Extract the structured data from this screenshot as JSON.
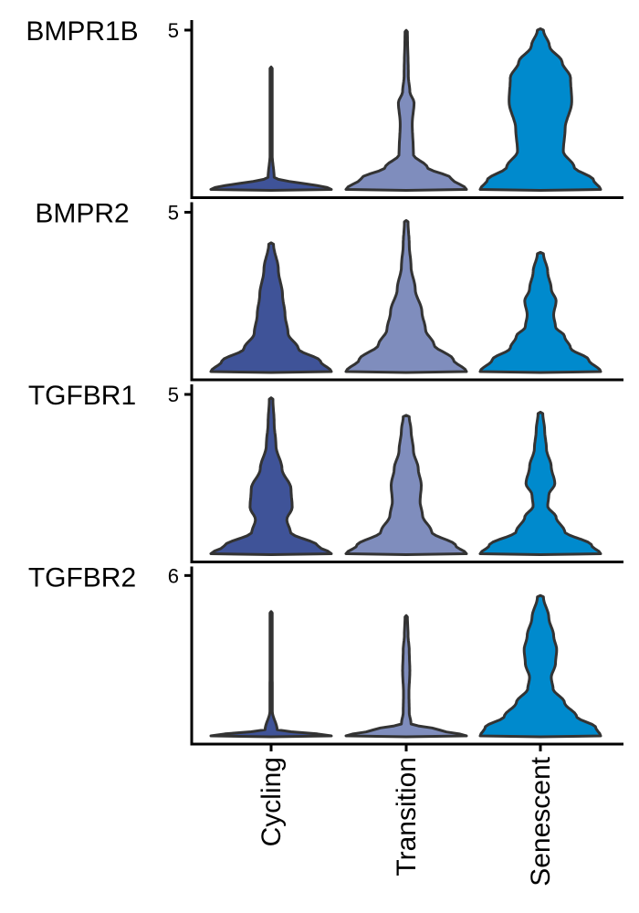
{
  "chart_data": {
    "type": "violin",
    "categories": [
      "Cycling",
      "Transition",
      "Senescent"
    ],
    "colors": {
      "Cycling": "#3F5398",
      "Transition": "#7F8DBD",
      "Senescent": "#008ACD"
    },
    "legend": "none",
    "grid": false,
    "panels": [
      {
        "gene": "BMPR1B",
        "ylim": [
          0,
          5.2
        ],
        "yticks": [
          5
        ],
        "violins": [
          {
            "category": "Cycling",
            "max": 3.8,
            "profile": [
              [
                0,
                1.0
              ],
              [
                0.1,
                0.05
              ],
              [
                0.3,
                0.015
              ],
              [
                1.0,
                0.008
              ]
            ]
          },
          {
            "category": "Transition",
            "max": 4.95,
            "profile": [
              [
                0,
                1.0
              ],
              [
                0.07,
                0.75
              ],
              [
                0.14,
                0.35
              ],
              [
                0.22,
                0.12
              ],
              [
                0.42,
                0.1
              ],
              [
                0.55,
                0.13
              ],
              [
                0.62,
                0.06
              ],
              [
                0.72,
                0.035
              ],
              [
                1.0,
                0.02
              ]
            ]
          },
          {
            "category": "Senescent",
            "max": 5.0,
            "profile": [
              [
                0,
                1.0
              ],
              [
                0.06,
                0.88
              ],
              [
                0.14,
                0.56
              ],
              [
                0.24,
                0.38
              ],
              [
                0.38,
                0.41
              ],
              [
                0.55,
                0.52
              ],
              [
                0.7,
                0.5
              ],
              [
                0.8,
                0.36
              ],
              [
                0.9,
                0.15
              ],
              [
                1.0,
                0.05
              ]
            ]
          }
        ]
      },
      {
        "gene": "BMPR2",
        "ylim": [
          0,
          5.2
        ],
        "yticks": [
          5
        ],
        "violins": [
          {
            "category": "Cycling",
            "max": 4.0,
            "profile": [
              [
                0,
                1.0
              ],
              [
                0.08,
                0.82
              ],
              [
                0.18,
                0.45
              ],
              [
                0.3,
                0.28
              ],
              [
                0.45,
                0.23
              ],
              [
                0.6,
                0.19
              ],
              [
                0.8,
                0.12
              ],
              [
                1.0,
                0.04
              ]
            ]
          },
          {
            "category": "Transition",
            "max": 4.7,
            "profile": [
              [
                0,
                1.0
              ],
              [
                0.08,
                0.78
              ],
              [
                0.18,
                0.46
              ],
              [
                0.28,
                0.32
              ],
              [
                0.4,
                0.26
              ],
              [
                0.55,
                0.15
              ],
              [
                0.7,
                0.08
              ],
              [
                0.85,
                0.05
              ],
              [
                1.0,
                0.03
              ]
            ]
          },
          {
            "category": "Senescent",
            "max": 3.7,
            "profile": [
              [
                0,
                1.0
              ],
              [
                0.1,
                0.8
              ],
              [
                0.2,
                0.5
              ],
              [
                0.3,
                0.4
              ],
              [
                0.38,
                0.25
              ],
              [
                0.48,
                0.22
              ],
              [
                0.6,
                0.26
              ],
              [
                0.7,
                0.18
              ],
              [
                0.85,
                0.12
              ],
              [
                1.0,
                0.05
              ]
            ]
          }
        ]
      },
      {
        "gene": "TGFBR1",
        "ylim": [
          0,
          5.2
        ],
        "yticks": [
          5
        ],
        "violins": [
          {
            "category": "Cycling",
            "max": 4.85,
            "profile": [
              [
                0,
                1.0
              ],
              [
                0.05,
                0.78
              ],
              [
                0.14,
                0.32
              ],
              [
                0.22,
                0.26
              ],
              [
                0.3,
                0.35
              ],
              [
                0.42,
                0.33
              ],
              [
                0.55,
                0.18
              ],
              [
                0.7,
                0.08
              ],
              [
                0.85,
                0.05
              ],
              [
                1.0,
                0.03
              ]
            ]
          },
          {
            "category": "Transition",
            "max": 4.3,
            "profile": [
              [
                0,
                1.0
              ],
              [
                0.06,
                0.82
              ],
              [
                0.16,
                0.42
              ],
              [
                0.28,
                0.27
              ],
              [
                0.38,
                0.23
              ],
              [
                0.5,
                0.25
              ],
              [
                0.62,
                0.2
              ],
              [
                0.75,
                0.12
              ],
              [
                0.9,
                0.08
              ],
              [
                1.0,
                0.05
              ]
            ]
          },
          {
            "category": "Senescent",
            "max": 4.4,
            "profile": [
              [
                0,
                1.0
              ],
              [
                0.06,
                0.85
              ],
              [
                0.16,
                0.4
              ],
              [
                0.26,
                0.26
              ],
              [
                0.34,
                0.12
              ],
              [
                0.42,
                0.14
              ],
              [
                0.5,
                0.24
              ],
              [
                0.62,
                0.18
              ],
              [
                0.75,
                0.1
              ],
              [
                0.88,
                0.07
              ],
              [
                1.0,
                0.04
              ]
            ]
          }
        ]
      },
      {
        "gene": "TGFBR2",
        "ylim": [
          0,
          6.2
        ],
        "yticks": [
          6
        ],
        "violins": [
          {
            "category": "Cycling",
            "max": 4.6,
            "profile": [
              [
                0,
                1.0
              ],
              [
                0.05,
                0.1
              ],
              [
                0.2,
                0.02
              ],
              [
                1.0,
                0.015
              ]
            ]
          },
          {
            "category": "Transition",
            "max": 4.45,
            "profile": [
              [
                0,
                1.0
              ],
              [
                0.05,
                0.55
              ],
              [
                0.1,
                0.08
              ],
              [
                0.2,
                0.05
              ],
              [
                0.35,
                0.045
              ],
              [
                0.55,
                0.06
              ],
              [
                0.72,
                0.05
              ],
              [
                0.85,
                0.03
              ],
              [
                1.0,
                0.02
              ]
            ]
          },
          {
            "category": "Senescent",
            "max": 5.2,
            "profile": [
              [
                0,
                1.0
              ],
              [
                0.06,
                0.92
              ],
              [
                0.14,
                0.6
              ],
              [
                0.24,
                0.4
              ],
              [
                0.34,
                0.21
              ],
              [
                0.42,
                0.18
              ],
              [
                0.52,
                0.25
              ],
              [
                0.62,
                0.27
              ],
              [
                0.72,
                0.22
              ],
              [
                0.85,
                0.14
              ],
              [
                1.0,
                0.05
              ]
            ]
          }
        ]
      }
    ]
  }
}
